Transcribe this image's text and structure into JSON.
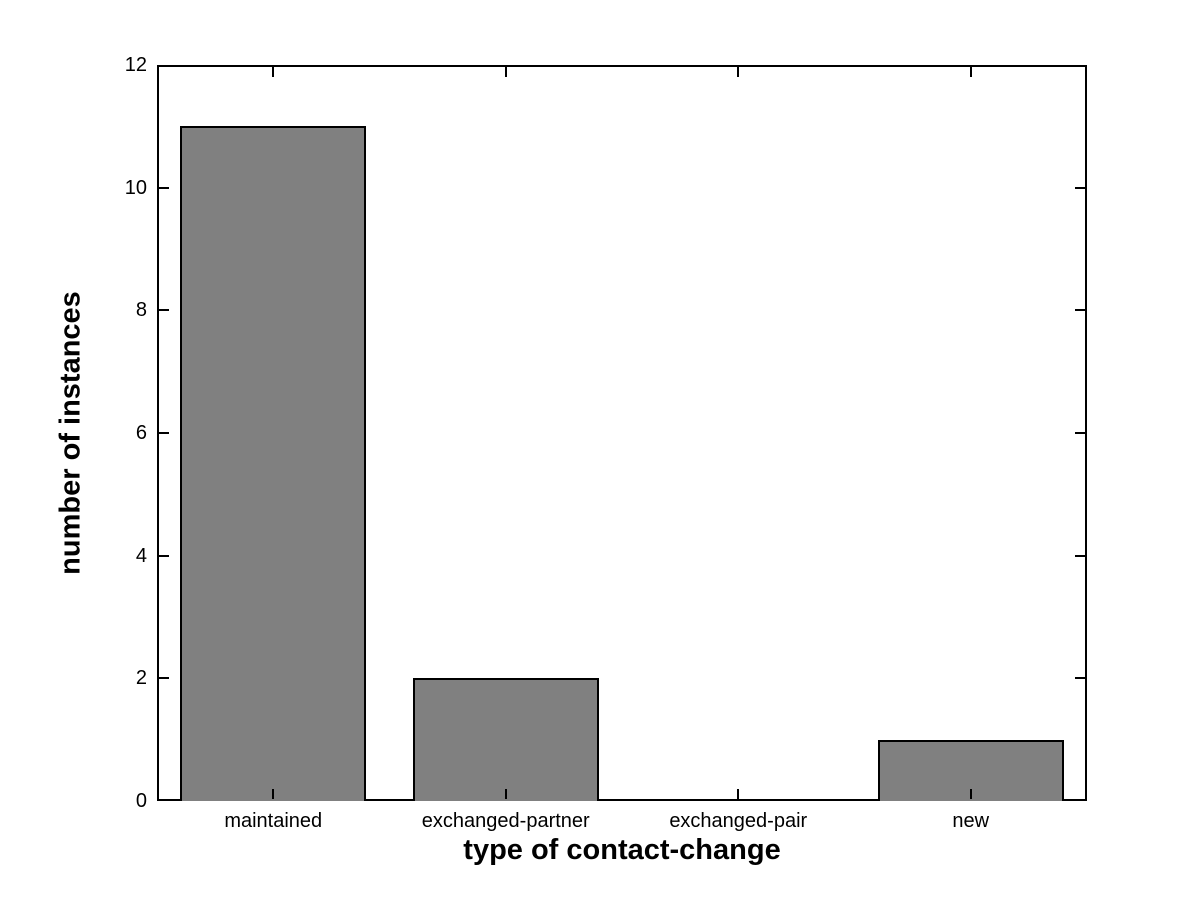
{
  "chart_data": {
    "type": "bar",
    "title": "",
    "categories": [
      "maintained",
      "exchanged-partner",
      "exchanged-pair",
      "new"
    ],
    "values": [
      11,
      2,
      0,
      1
    ],
    "xlabel": "type of contact-change",
    "ylabel": "number of instances",
    "ylim": [
      0,
      12
    ],
    "yticks": [
      0,
      2,
      4,
      6,
      8,
      10,
      12
    ],
    "ytick_labels": [
      "0",
      "2",
      "4",
      "6",
      "8",
      "10",
      "12"
    ],
    "bar_relative_width": 0.8,
    "grid": false,
    "legend": null,
    "bar_color": "#808080",
    "bar_edge_color": "#000000",
    "axis_color": "#000000",
    "background_color": "#ffffff"
  }
}
